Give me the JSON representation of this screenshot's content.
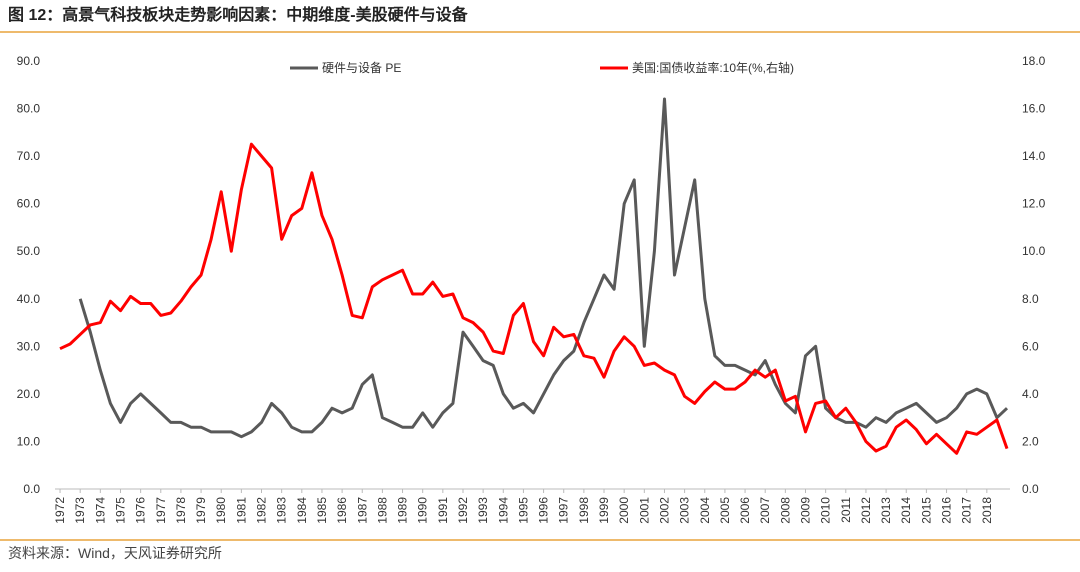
{
  "chart_data": {
    "type": "line",
    "title": "图 12：高景气科技板块走势影响因素：中期维度-美股硬件与设备",
    "source": "资料来源：Wind，天风证券研究所",
    "legend": "top",
    "x": [
      1972,
      1972.5,
      1973,
      1973.5,
      1974,
      1974.5,
      1975,
      1975.5,
      1976,
      1976.5,
      1977,
      1977.5,
      1978,
      1978.5,
      1979,
      1979.5,
      1980,
      1980.5,
      1981,
      1981.5,
      1982,
      1982.5,
      1983,
      1983.5,
      1984,
      1984.5,
      1985,
      1985.5,
      1986,
      1986.5,
      1987,
      1987.5,
      1988,
      1988.5,
      1989,
      1989.5,
      1990,
      1990.5,
      1991,
      1991.5,
      1992,
      1992.5,
      1993,
      1993.5,
      1994,
      1994.5,
      1995,
      1995.5,
      1996,
      1996.5,
      1997,
      1997.5,
      1998,
      1998.5,
      1999,
      1999.5,
      2000,
      2000.5,
      2001,
      2001.5,
      2002,
      2002.5,
      2003,
      2003.5,
      2004,
      2004.5,
      2005,
      2005.5,
      2006,
      2006.5,
      2007,
      2007.5,
      2008,
      2008.5,
      2009,
      2009.5,
      2010,
      2010.5,
      2011,
      2011.5,
      2012,
      2012.5,
      2013,
      2013.5,
      2014,
      2014.5,
      2015,
      2015.5,
      2016,
      2016.5,
      2017,
      2017.5,
      2018,
      2018.5,
      2019
    ],
    "xlim": [
      1971.75,
      2019.15
    ],
    "xticks": [
      1972,
      1973,
      1974,
      1975,
      1976,
      1977,
      1978,
      1979,
      1980,
      1981,
      1982,
      1983,
      1984,
      1985,
      1986,
      1987,
      1988,
      1989,
      1990,
      1991,
      1992,
      1993,
      1994,
      1995,
      1996,
      1997,
      1998,
      1999,
      2000,
      2001,
      2002,
      2003,
      2004,
      2005,
      2006,
      2007,
      2008,
      2009,
      2010,
      2011,
      2012,
      2013,
      2014,
      2015,
      2016,
      2017,
      2018
    ],
    "ylim": [
      0,
      90
    ],
    "yticks": [
      {
        "value": 0,
        "label": "0.0"
      },
      {
        "value": 10,
        "label": "10.0"
      },
      {
        "value": 20,
        "label": "20.0"
      },
      {
        "value": 30,
        "label": "30.0"
      },
      {
        "value": 40,
        "label": "40.0"
      },
      {
        "value": 50,
        "label": "50.0"
      },
      {
        "value": 60,
        "label": "60.0"
      },
      {
        "value": 70,
        "label": "70.0"
      },
      {
        "value": 80,
        "label": "80.0"
      },
      {
        "value": 90,
        "label": "90.0"
      }
    ],
    "y2lim": [
      0,
      18
    ],
    "y2ticks": [
      {
        "value": 0,
        "label": "0.0"
      },
      {
        "value": 2,
        "label": "2.0"
      },
      {
        "value": 4,
        "label": "4.0"
      },
      {
        "value": 6,
        "label": "6.0"
      },
      {
        "value": 8,
        "label": "8.0"
      },
      {
        "value": 10,
        "label": "10.0"
      },
      {
        "value": 12,
        "label": "12.0"
      },
      {
        "value": 14,
        "label": "14.0"
      },
      {
        "value": 16,
        "label": "16.0"
      },
      {
        "value": 18,
        "label": "18.0"
      }
    ],
    "series": [
      {
        "name": "硬件与设备 PE",
        "color": "#595959",
        "values": [
          null,
          null,
          40,
          33,
          25,
          18,
          14,
          18,
          20,
          18,
          16,
          14,
          14,
          13,
          13,
          12,
          12,
          12,
          11,
          12,
          14,
          18,
          16,
          13,
          12,
          12,
          14,
          17,
          16,
          17,
          22,
          24,
          15,
          14,
          13,
          13,
          16,
          13,
          16,
          18,
          33,
          30,
          27,
          26,
          20,
          17,
          18,
          16,
          20,
          24,
          27,
          29,
          35,
          40,
          45,
          42,
          60,
          65,
          30,
          50,
          82,
          45,
          55,
          65,
          40,
          28,
          26,
          26,
          25,
          24,
          27,
          22,
          18,
          16,
          28,
          30,
          17,
          15,
          14,
          14,
          13,
          15,
          14,
          16,
          17,
          18,
          16,
          14,
          15,
          17,
          20,
          21,
          20,
          15,
          17
        ]
      },
      {
        "name": "美国:国债收益率:10年(%,右轴)",
        "color": "#ff0000",
        "axis": "y2",
        "values": [
          5.9,
          6.1,
          6.5,
          6.9,
          7.0,
          7.9,
          7.5,
          8.1,
          7.8,
          7.8,
          7.3,
          7.4,
          7.9,
          8.5,
          9.0,
          10.5,
          12.5,
          10.0,
          12.6,
          14.5,
          14.0,
          13.5,
          10.5,
          11.5,
          11.8,
          13.3,
          11.5,
          10.5,
          9.0,
          7.3,
          7.2,
          8.5,
          8.8,
          9.0,
          9.2,
          8.2,
          8.2,
          8.7,
          8.1,
          8.2,
          7.2,
          7.0,
          6.6,
          5.8,
          5.7,
          7.3,
          7.8,
          6.2,
          5.6,
          6.8,
          6.4,
          6.5,
          5.6,
          5.5,
          4.7,
          5.8,
          6.4,
          6.0,
          5.2,
          5.3,
          5.0,
          4.8,
          3.9,
          3.6,
          4.1,
          4.5,
          4.2,
          4.2,
          4.5,
          5.0,
          4.7,
          5.0,
          3.7,
          3.9,
          2.4,
          3.6,
          3.7,
          3.0,
          3.4,
          2.8,
          2.0,
          1.6,
          1.8,
          2.6,
          2.9,
          2.5,
          1.9,
          2.3,
          1.9,
          1.5,
          2.4,
          2.3,
          2.6,
          2.9,
          1.7
        ]
      }
    ]
  }
}
